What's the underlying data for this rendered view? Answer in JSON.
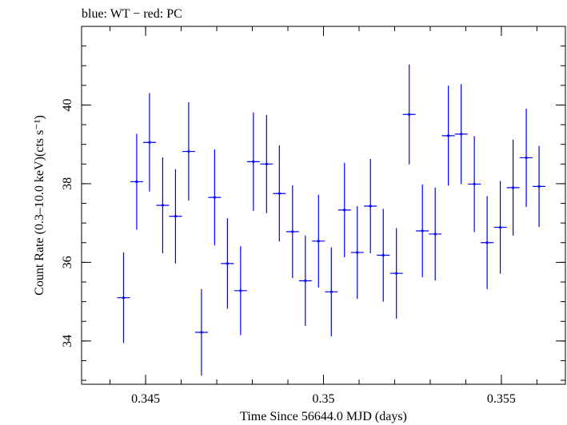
{
  "chart_data": {
    "type": "scatter",
    "title": "blue: WT − red: PC",
    "xlabel": "Time Since 56644.0 MJD (days)",
    "ylabel": "Count Rate (0.3–10.0 keV)(cts s⁻¹)",
    "xlim": [
      0.3432,
      0.3568
    ],
    "ylim": [
      32.9,
      42.0
    ],
    "x_ticks": [
      {
        "value": 0.345,
        "label": "0.345"
      },
      {
        "value": 0.35,
        "label": "0.35"
      },
      {
        "value": 0.355,
        "label": "0.355"
      }
    ],
    "y_ticks": [
      {
        "value": 34,
        "label": "34"
      },
      {
        "value": 36,
        "label": "36"
      },
      {
        "value": 38,
        "label": "38"
      },
      {
        "value": 40,
        "label": "40"
      }
    ],
    "x_minor_step": 0.001,
    "y_minor_step": 0.5,
    "grid": false,
    "series": [
      {
        "name": "WT",
        "color": "#0000ff",
        "points": [
          {
            "x": 0.34438,
            "xerr": 0.00018,
            "y": 35.1,
            "yerr": 1.15
          },
          {
            "x": 0.34475,
            "xerr": 0.00018,
            "y": 38.05,
            "yerr": 1.22
          },
          {
            "x": 0.34511,
            "xerr": 0.00018,
            "y": 39.05,
            "yerr": 1.25
          },
          {
            "x": 0.34548,
            "xerr": 0.00018,
            "y": 37.45,
            "yerr": 1.22
          },
          {
            "x": 0.34584,
            "xerr": 0.00018,
            "y": 37.17,
            "yerr": 1.2
          },
          {
            "x": 0.34621,
            "xerr": 0.00018,
            "y": 38.82,
            "yerr": 1.25
          },
          {
            "x": 0.34657,
            "xerr": 0.00018,
            "y": 34.22,
            "yerr": 1.1
          },
          {
            "x": 0.34694,
            "xerr": 0.00018,
            "y": 37.65,
            "yerr": 1.22
          },
          {
            "x": 0.3473,
            "xerr": 0.00018,
            "y": 35.97,
            "yerr": 1.15
          },
          {
            "x": 0.34767,
            "xerr": 0.00018,
            "y": 35.28,
            "yerr": 1.13
          },
          {
            "x": 0.34803,
            "xerr": 0.00018,
            "y": 38.56,
            "yerr": 1.25
          },
          {
            "x": 0.3484,
            "xerr": 0.00018,
            "y": 38.5,
            "yerr": 1.25
          },
          {
            "x": 0.34876,
            "xerr": 0.00018,
            "y": 37.75,
            "yerr": 1.22
          },
          {
            "x": 0.34913,
            "xerr": 0.00018,
            "y": 36.78,
            "yerr": 1.18
          },
          {
            "x": 0.34949,
            "xerr": 0.00018,
            "y": 35.53,
            "yerr": 1.15
          },
          {
            "x": 0.34986,
            "xerr": 0.00018,
            "y": 36.54,
            "yerr": 1.18
          },
          {
            "x": 0.35022,
            "xerr": 0.00018,
            "y": 35.25,
            "yerr": 1.13
          },
          {
            "x": 0.35059,
            "xerr": 0.00018,
            "y": 37.33,
            "yerr": 1.2
          },
          {
            "x": 0.35095,
            "xerr": 0.00018,
            "y": 36.25,
            "yerr": 1.18
          },
          {
            "x": 0.35132,
            "xerr": 0.00018,
            "y": 37.43,
            "yerr": 1.2
          },
          {
            "x": 0.35168,
            "xerr": 0.00018,
            "y": 36.18,
            "yerr": 1.18
          },
          {
            "x": 0.35205,
            "xerr": 0.00018,
            "y": 35.72,
            "yerr": 1.15
          },
          {
            "x": 0.35241,
            "xerr": 0.00018,
            "y": 39.76,
            "yerr": 1.27
          },
          {
            "x": 0.35278,
            "xerr": 0.00018,
            "y": 36.8,
            "yerr": 1.18
          },
          {
            "x": 0.35314,
            "xerr": 0.00018,
            "y": 36.72,
            "yerr": 1.18
          },
          {
            "x": 0.35351,
            "xerr": 0.00018,
            "y": 39.22,
            "yerr": 1.27
          },
          {
            "x": 0.35387,
            "xerr": 0.00018,
            "y": 39.26,
            "yerr": 1.27
          },
          {
            "x": 0.35424,
            "xerr": 0.00018,
            "y": 37.99,
            "yerr": 1.22
          },
          {
            "x": 0.3546,
            "xerr": 0.00018,
            "y": 36.5,
            "yerr": 1.18
          },
          {
            "x": 0.35497,
            "xerr": 0.00018,
            "y": 36.89,
            "yerr": 1.18
          },
          {
            "x": 0.35533,
            "xerr": 0.00018,
            "y": 37.9,
            "yerr": 1.22
          },
          {
            "x": 0.3557,
            "xerr": 0.00018,
            "y": 38.66,
            "yerr": 1.25
          },
          {
            "x": 0.35606,
            "xerr": 0.00018,
            "y": 37.93,
            "yerr": 1.03
          }
        ]
      }
    ]
  }
}
